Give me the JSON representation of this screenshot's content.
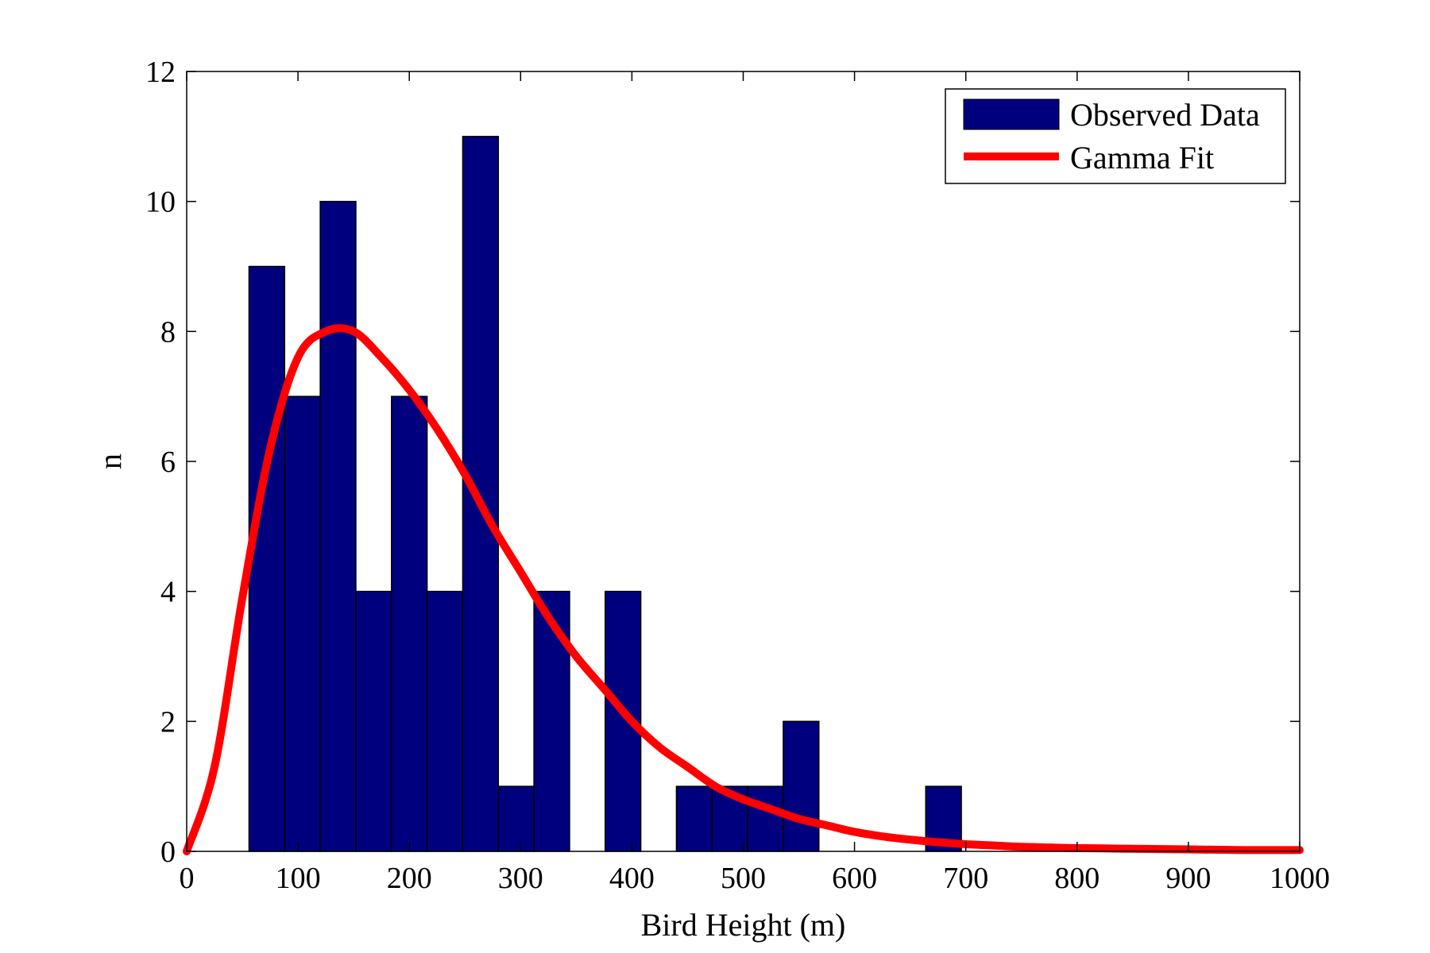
{
  "chart_data": {
    "type": "bar",
    "title": "",
    "xlabel": "Bird Height (m)",
    "ylabel": "n",
    "xlim": [
      0,
      1000
    ],
    "ylim": [
      0,
      12
    ],
    "x_ticks": [
      "0",
      "100",
      "200",
      "300",
      "400",
      "500",
      "600",
      "700",
      "800",
      "900",
      "1000"
    ],
    "y_ticks": [
      "0",
      "2",
      "4",
      "6",
      "8",
      "10",
      "12"
    ],
    "grid": false,
    "legend": {
      "placement": "top-right",
      "entries": [
        "Observed Data",
        "Gamma Fit"
      ]
    },
    "colors": {
      "bars": "#00007f",
      "fit": "#ff0000",
      "bar_edge": "#000000"
    },
    "series": [
      {
        "name": "Observed Data",
        "type": "histogram",
        "bin_edges": [
          56,
          88,
          120,
          152,
          184,
          216,
          248,
          280,
          312,
          344,
          376,
          408,
          440,
          472,
          504,
          536,
          568,
          600,
          632,
          664,
          696
        ],
        "counts": [
          9,
          7,
          10,
          4,
          7,
          4,
          11,
          1,
          4,
          0,
          4,
          0,
          1,
          1,
          1,
          2,
          0,
          0,
          0,
          1
        ]
      },
      {
        "name": "Gamma Fit",
        "type": "line",
        "x": [
          0,
          25,
          50,
          75,
          100,
          125,
          150,
          175,
          200,
          225,
          250,
          275,
          300,
          325,
          350,
          375,
          400,
          425,
          450,
          475,
          500,
          525,
          550,
          575,
          600,
          625,
          650,
          675,
          700,
          725,
          750,
          775,
          800,
          850,
          900,
          950,
          1000
        ],
        "y": [
          0,
          1.3,
          3.9,
          6.2,
          7.6,
          8.0,
          8.0,
          7.6,
          7.1,
          6.5,
          5.8,
          5.0,
          4.3,
          3.6,
          3.0,
          2.5,
          2.0,
          1.6,
          1.3,
          1.0,
          0.8,
          0.65,
          0.5,
          0.4,
          0.3,
          0.23,
          0.18,
          0.14,
          0.11,
          0.09,
          0.07,
          0.06,
          0.05,
          0.04,
          0.03,
          0.02,
          0.02
        ]
      }
    ]
  }
}
